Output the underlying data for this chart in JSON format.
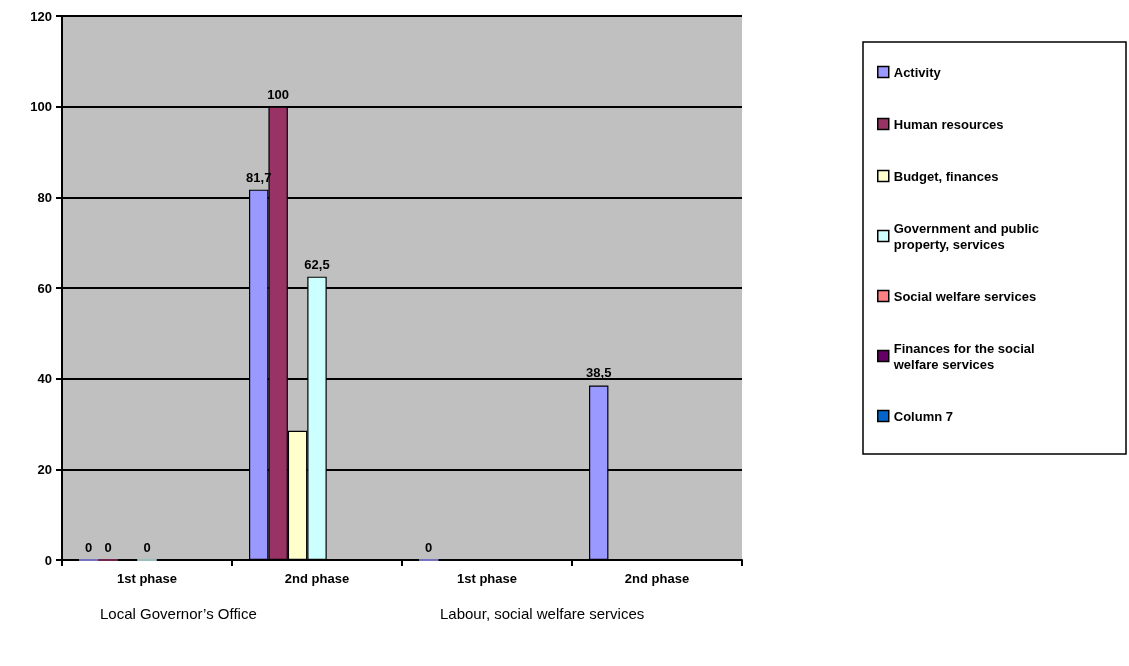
{
  "chart_data": {
    "type": "bar",
    "categories": [
      "1st phase",
      "2nd phase",
      "1st phase",
      "2nd phase"
    ],
    "series": [
      {
        "name": "Activity",
        "color": "#9999ff",
        "values": [
          0,
          81.7,
          0,
          38.5
        ],
        "value_labels": [
          "0",
          "81,7",
          "0",
          "38,5"
        ]
      },
      {
        "name": "Human resources",
        "color": "#993366",
        "values": [
          0,
          100,
          null,
          null
        ],
        "value_labels": [
          "0",
          "100",
          null,
          null
        ]
      },
      {
        "name": "Budget, finances",
        "color": "#ffffcc",
        "values": [
          null,
          28.5,
          null,
          null
        ]
      },
      {
        "name": "Government and public property, services",
        "color": "#ccffff",
        "values": [
          0,
          62.5,
          null,
          null
        ],
        "value_labels": [
          "0",
          "62,5",
          null,
          null
        ]
      },
      {
        "name": "Social welfare services",
        "color": "#ff8080",
        "values": [
          null,
          null,
          null,
          null
        ]
      },
      {
        "name": "Finances for the social welfare services",
        "color": "#660066",
        "values": [
          null,
          null,
          null,
          null
        ]
      },
      {
        "name": "Column 7",
        "color": "#0066cc",
        "values": [
          null,
          null,
          null,
          null
        ]
      }
    ],
    "ylim": [
      0,
      120
    ],
    "yticks": [
      0,
      20,
      40,
      60,
      80,
      100,
      120
    ],
    "grid": "y",
    "legend": "right",
    "annotations": [
      "Local Governor’s Office",
      "Labour, social welfare services"
    ]
  }
}
